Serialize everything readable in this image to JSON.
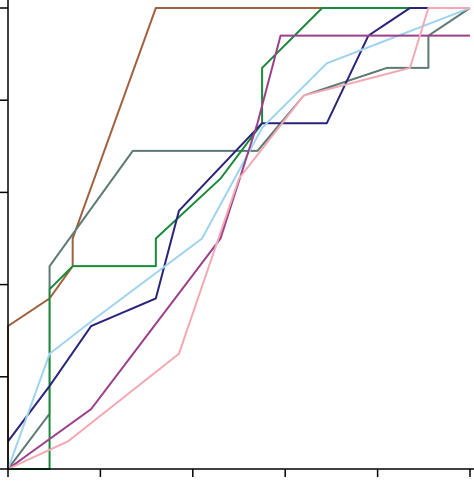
{
  "chart_data": {
    "type": "line",
    "xlim": [
      0,
      1
    ],
    "ylim": [
      0,
      1
    ],
    "xticks": [
      0,
      0.2,
      0.4,
      0.6,
      0.8,
      1.0
    ],
    "yticks": [
      0,
      0.2,
      0.4,
      0.6,
      0.8,
      1.0
    ],
    "series": [
      {
        "color": "#a0613f",
        "x": [
          0,
          0,
          0.09,
          0.14,
          0.14,
          0.32,
          1
        ],
        "values": [
          0,
          0.31,
          0.37,
          0.44,
          0.5,
          1,
          1
        ]
      },
      {
        "color": "#5e7a74",
        "x": [
          0,
          0.09,
          0.09,
          0.27,
          0.54,
          0.64,
          0.82,
          0.91,
          0.91,
          1
        ],
        "values": [
          0,
          0.12,
          0.44,
          0.69,
          0.69,
          0.81,
          0.87,
          0.87,
          0.94,
          1
        ]
      },
      {
        "color": "#1a8a3a",
        "x": [
          0,
          0.09,
          0.09,
          0.14,
          0.32,
          0.32,
          0.46,
          0.55,
          0.55,
          0.68,
          1
        ],
        "values": [
          0,
          0,
          0.39,
          0.44,
          0.44,
          0.5,
          0.63,
          0.75,
          0.87,
          1,
          1
        ]
      },
      {
        "color": "#2a237a",
        "x": [
          0,
          0.09,
          0.18,
          0.32,
          0.37,
          0.55,
          0.69,
          0.78,
          0.87,
          1
        ],
        "values": [
          0.06,
          0.18,
          0.31,
          0.37,
          0.56,
          0.75,
          0.75,
          0.94,
          1,
          1
        ]
      },
      {
        "color": "#9fd3ef",
        "x": [
          0,
          0.09,
          0.18,
          0.42,
          0.55,
          0.69,
          1
        ],
        "values": [
          0,
          0.25,
          0.32,
          0.5,
          0.74,
          0.88,
          1
        ]
      },
      {
        "color": "#9b3f8a",
        "x": [
          0,
          0.18,
          0.46,
          0.54,
          0.59,
          1
        ],
        "values": [
          0,
          0.13,
          0.5,
          0.75,
          0.94,
          0.94
        ]
      },
      {
        "color": "#f2a9b4",
        "x": [
          0,
          0.13,
          0.37,
          0.5,
          0.64,
          0.87,
          0.91,
          1
        ],
        "values": [
          0,
          0.06,
          0.25,
          0.63,
          0.81,
          0.87,
          1,
          1
        ]
      }
    ]
  }
}
